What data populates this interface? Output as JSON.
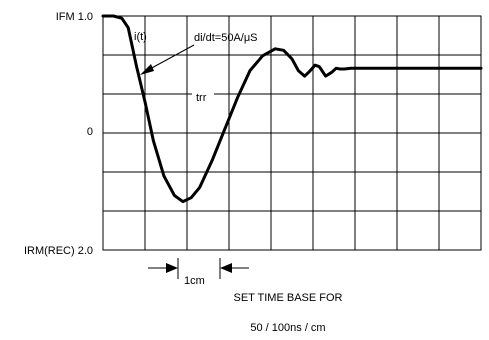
{
  "chart_data": {
    "type": "line",
    "title": "",
    "xlabel": "",
    "ylabel": "",
    "y_axis_labels": {
      "top": "IFM 1.0",
      "middle": "0",
      "bottom": "IRM(REC) 2.0"
    },
    "grid": true,
    "grid_divisions": {
      "x": 9,
      "y": 6
    },
    "xlim": [
      0,
      9
    ],
    "ylim": [
      -2.0,
      1.0
    ],
    "series": [
      {
        "x": [
          0.0,
          0.25,
          0.45,
          0.6,
          0.7,
          0.8,
          1.0,
          1.2,
          1.45,
          1.7,
          1.9,
          2.1,
          2.3,
          2.6,
          2.9,
          3.2,
          3.5,
          3.8,
          4.1,
          4.3,
          4.5,
          4.65,
          4.8,
          4.9,
          5.05,
          5.15,
          5.3,
          5.45,
          5.55,
          5.65,
          5.75,
          5.9,
          6.2,
          7.0,
          8.0,
          9.0
        ],
        "y": [
          1.0,
          1.0,
          0.97,
          0.85,
          0.6,
          0.35,
          -0.1,
          -0.6,
          -1.05,
          -1.3,
          -1.38,
          -1.33,
          -1.2,
          -0.85,
          -0.45,
          -0.05,
          0.3,
          0.49,
          0.58,
          0.56,
          0.45,
          0.3,
          0.23,
          0.28,
          0.37,
          0.35,
          0.23,
          0.28,
          0.33,
          0.32,
          0.32,
          0.33,
          0.33,
          0.33,
          0.33,
          0.33
        ]
      }
    ],
    "annotations": {
      "current_label": "i(t)",
      "slope_label": "di/dt=50A/μS",
      "trr_label": "trr",
      "scale_label": "1cm",
      "time_base_line1": "SET TIME BASE FOR",
      "time_base_line2": "50 / 100ns / cm"
    }
  }
}
